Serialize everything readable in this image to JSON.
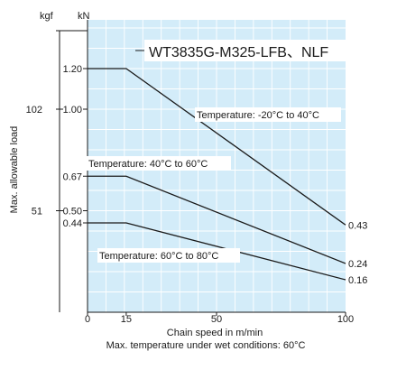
{
  "chart_data": {
    "type": "line",
    "title": "WT3835G-M325-LFB、NLF",
    "xlabel": "Chain speed in m/min",
    "ylabel": "Max. allowable load",
    "note": "Max. temperature under wet conditions: 60°C",
    "x_unit_top": "kN",
    "y_unit_left": "kgf",
    "xlim": [
      0,
      100
    ],
    "ylim": [
      0,
      1.6
    ],
    "x_ticks": [
      {
        "value": 0,
        "label": "0"
      },
      {
        "value": 15,
        "label": "15"
      },
      {
        "value": 50,
        "label": "50"
      },
      {
        "value": 100,
        "label": "100"
      }
    ],
    "y_ticks_kn": [
      {
        "value": 1.2,
        "label": "1.20"
      },
      {
        "value": 1.0,
        "label": "1.00"
      },
      {
        "value": 0.67,
        "label": "0.67"
      },
      {
        "value": 0.5,
        "label": "0.50"
      },
      {
        "value": 0.44,
        "label": "0.44"
      }
    ],
    "y_ticks_kgf": [
      {
        "value": 1.0,
        "label": "102"
      },
      {
        "value": 0.5,
        "label": "51"
      }
    ],
    "series": [
      {
        "name": "Temperature: -20°C to 40°C",
        "x": [
          0,
          15,
          100
        ],
        "y": [
          1.2,
          1.2,
          0.43
        ],
        "end_label": "0.43"
      },
      {
        "name": "Temperature: 40°C to 60°C",
        "x": [
          0,
          15,
          100
        ],
        "y": [
          0.67,
          0.67,
          0.24
        ],
        "end_label": "0.24"
      },
      {
        "name": "Temperature: 60°C to 80°C",
        "x": [
          0,
          15,
          100
        ],
        "y": [
          0.44,
          0.44,
          0.16
        ],
        "end_label": "0.16"
      }
    ],
    "grid": true,
    "background_color": "#d3ecf9",
    "grid_color": "#ffffff",
    "line_color": "#1a1a1a"
  }
}
